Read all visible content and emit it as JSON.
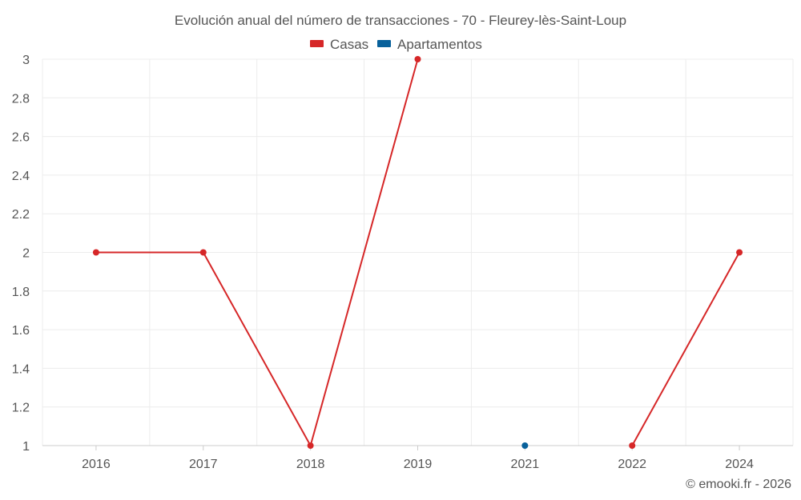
{
  "chart_data": {
    "type": "line",
    "title": "Evolución anual del número de transacciones - 70 - Fleurey-lès-Saint-Loup",
    "categories": [
      "2016",
      "2017",
      "2018",
      "2019",
      "2021",
      "2022",
      "2024"
    ],
    "series": [
      {
        "name": "Casas",
        "color": "#d62728",
        "values": [
          2,
          2,
          1,
          3,
          null,
          1,
          2
        ]
      },
      {
        "name": "Apartamentos",
        "color": "#08619b",
        "values": [
          null,
          null,
          null,
          null,
          1,
          null,
          null
        ]
      }
    ],
    "ylim": [
      1,
      3
    ],
    "yticks": [
      "3",
      "2.8",
      "2.6",
      "2.4",
      "2.2",
      "2",
      "1.8",
      "1.6",
      "1.4",
      "1.2",
      "1"
    ],
    "grid": true,
    "legend_position": "top-center"
  },
  "credit": "© emooki.fr - 2026"
}
